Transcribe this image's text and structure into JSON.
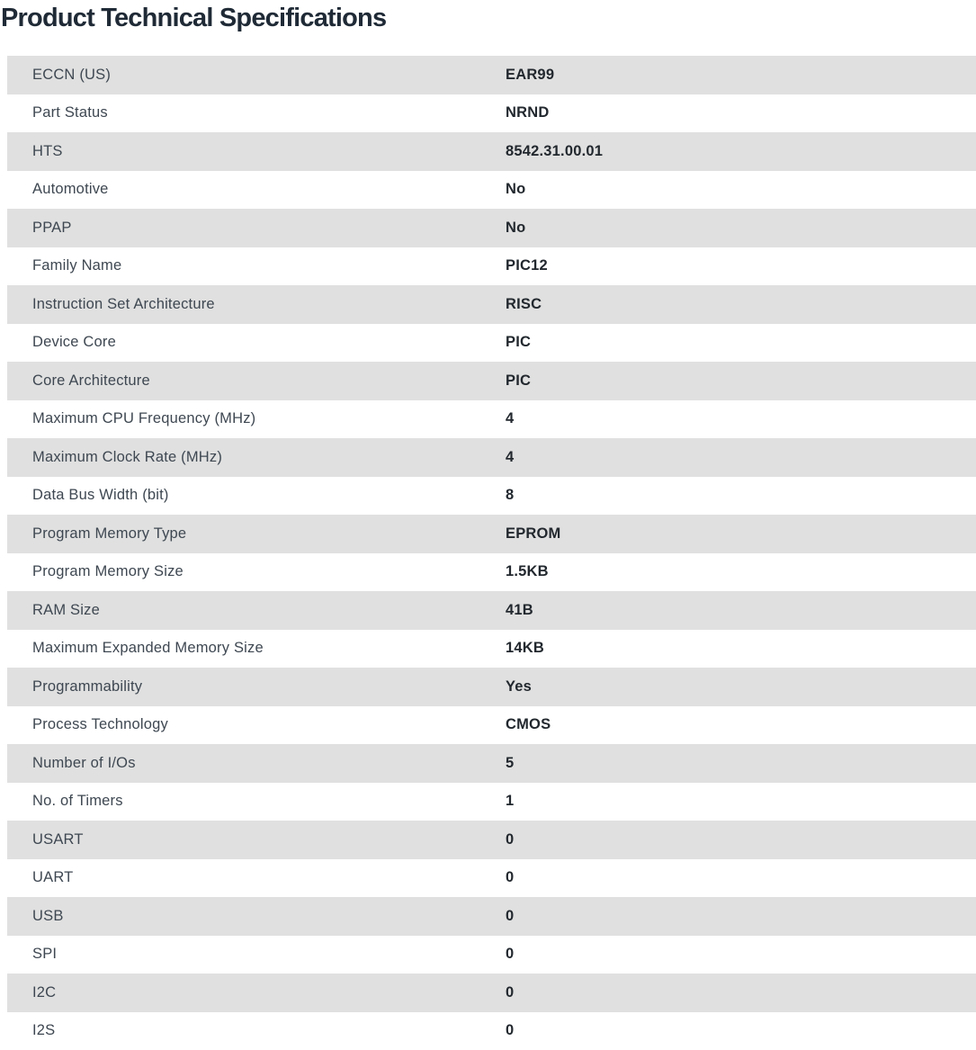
{
  "title": "Product Technical Specifications",
  "colors": {
    "row_alt": "#e0e0e0",
    "title": "#1f2a36",
    "label": "#3e4751",
    "value": "#22282e"
  },
  "rows": [
    {
      "label": "ECCN (US)",
      "value": "EAR99"
    },
    {
      "label": "Part Status",
      "value": "NRND"
    },
    {
      "label": "HTS",
      "value": "8542.31.00.01"
    },
    {
      "label": "Automotive",
      "value": "No"
    },
    {
      "label": "PPAP",
      "value": "No"
    },
    {
      "label": "Family Name",
      "value": "PIC12"
    },
    {
      "label": "Instruction Set Architecture",
      "value": "RISC"
    },
    {
      "label": "Device Core",
      "value": "PIC"
    },
    {
      "label": "Core Architecture",
      "value": "PIC"
    },
    {
      "label": "Maximum CPU Frequency (MHz)",
      "value": "4"
    },
    {
      "label": "Maximum Clock Rate (MHz)",
      "value": "4"
    },
    {
      "label": "Data Bus Width (bit)",
      "value": "8"
    },
    {
      "label": "Program Memory Type",
      "value": "EPROM"
    },
    {
      "label": "Program Memory Size",
      "value": "1.5KB"
    },
    {
      "label": "RAM Size",
      "value": "41B"
    },
    {
      "label": "Maximum Expanded Memory Size",
      "value": "14KB"
    },
    {
      "label": "Programmability",
      "value": "Yes"
    },
    {
      "label": "Process Technology",
      "value": "CMOS"
    },
    {
      "label": "Number of I/Os",
      "value": "5"
    },
    {
      "label": "No. of Timers",
      "value": "1"
    },
    {
      "label": "USART",
      "value": "0"
    },
    {
      "label": "UART",
      "value": "0"
    },
    {
      "label": "USB",
      "value": "0"
    },
    {
      "label": "SPI",
      "value": "0"
    },
    {
      "label": "I2C",
      "value": "0"
    },
    {
      "label": "I2S",
      "value": "0"
    }
  ]
}
